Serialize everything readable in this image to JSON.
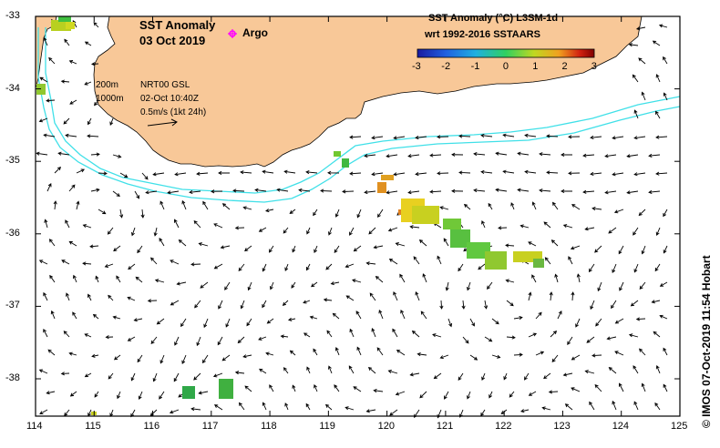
{
  "title": {
    "line1": "SST Anomaly",
    "line2": "03 Oct 2019"
  },
  "argo_label": "Argo",
  "legend": {
    "title_line1": "SST Anomaly (°C) L3SM-1d",
    "title_line2": "wrt 1992-2016 SSTAARS",
    "ticks": [
      "-3",
      "-2",
      "-1",
      "0",
      "1",
      "2",
      "3"
    ],
    "colors": [
      "#1a1aa0",
      "#2060e0",
      "#20b0e0",
      "#30d060",
      "#c0d820",
      "#f0a020",
      "#d02010",
      "#800000"
    ]
  },
  "info": {
    "depth1": "200m",
    "depth2": "1000m",
    "product": "NRT00 GSL",
    "datetime": "02-Oct 10:40Z",
    "scale": "0.5m/s (1kt 24h)"
  },
  "axes": {
    "x_ticks": [
      "114",
      "115",
      "116",
      "117",
      "118",
      "119",
      "120",
      "121",
      "122",
      "123",
      "124",
      "125"
    ],
    "y_ticks": [
      "-33",
      "-34",
      "-35",
      "-36",
      "-37",
      "-38"
    ]
  },
  "credit": "© IMOS 07-Oct-2019 11:54 Hobart",
  "colors": {
    "land": "#f8c898",
    "isobath": "#40e0e8",
    "border": "#000000",
    "argo": "#ff00ff"
  }
}
